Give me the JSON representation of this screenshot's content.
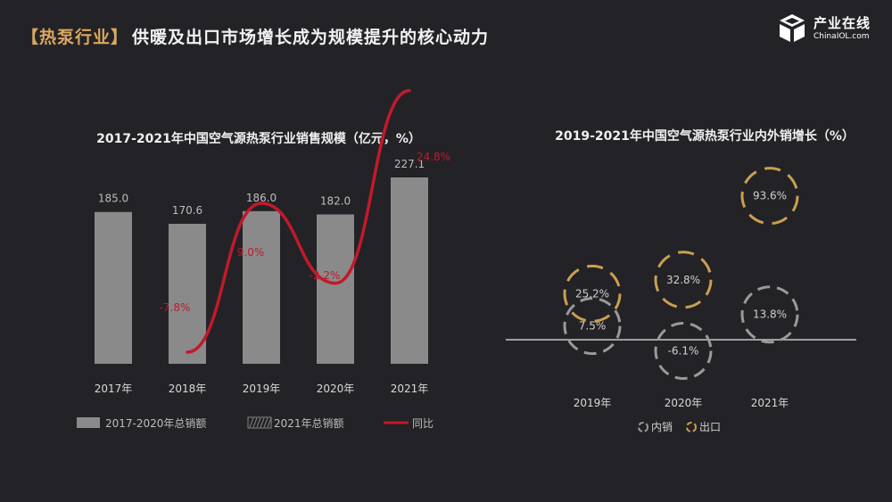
{
  "header": {
    "tag": "【热泵行业】",
    "headline": "供暖及出口市场增长成为规模提升的核心动力"
  },
  "logo": {
    "name_cn": "产业在线",
    "name_en": "ChinaIOL.com",
    "icon": "chinaiol-logo-icon"
  },
  "colors": {
    "background": "#232227",
    "bar": "#8a8a8a",
    "line": "#c01a2a",
    "domestic_ring": "#9a9a9a",
    "export_ring": "#c9a04e",
    "text": "#e6e6e6"
  },
  "chart_data": [
    {
      "type": "bar",
      "title": "2017-2021年中国空气源热泵行业销售规模（亿元，%）",
      "categories": [
        "2017年",
        "2018年",
        "2019年",
        "2020年",
        "2021年"
      ],
      "series": [
        {
          "name": "2017-2020年总销额",
          "values": [
            185.0,
            170.6,
            186.0,
            182.0,
            227.1
          ],
          "value_labels": [
            "185.0",
            "170.6",
            "186.0",
            "182.0",
            "227.1"
          ]
        },
        {
          "name": "同比",
          "type": "line",
          "values": [
            null,
            -7.8,
            9.0,
            -2.2,
            24.8
          ],
          "value_labels": [
            "",
            "-7.8%",
            "9.0%",
            "-2.2%",
            "24.8%"
          ]
        }
      ],
      "legend": [
        "2017-2020年总销额",
        "2021年总销额",
        "同比"
      ],
      "legend_position": "bottom",
      "grid": false
    },
    {
      "type": "scatter",
      "title": "2019-2021年中国空气源热泵行业内外销增长（%）",
      "categories": [
        "2019年",
        "2020年",
        "2021年"
      ],
      "series": [
        {
          "name": "内销",
          "values": [
            7.5,
            -6.1,
            13.8
          ],
          "value_labels": [
            "7.5%",
            "-6.1%",
            "13.8%"
          ]
        },
        {
          "name": "出口",
          "values": [
            25.2,
            32.8,
            93.6
          ],
          "value_labels": [
            "25.2%",
            "32.8%",
            "93.6%"
          ]
        }
      ],
      "legend": [
        "内销",
        "出口"
      ],
      "legend_position": "bottom",
      "grid": false
    }
  ]
}
